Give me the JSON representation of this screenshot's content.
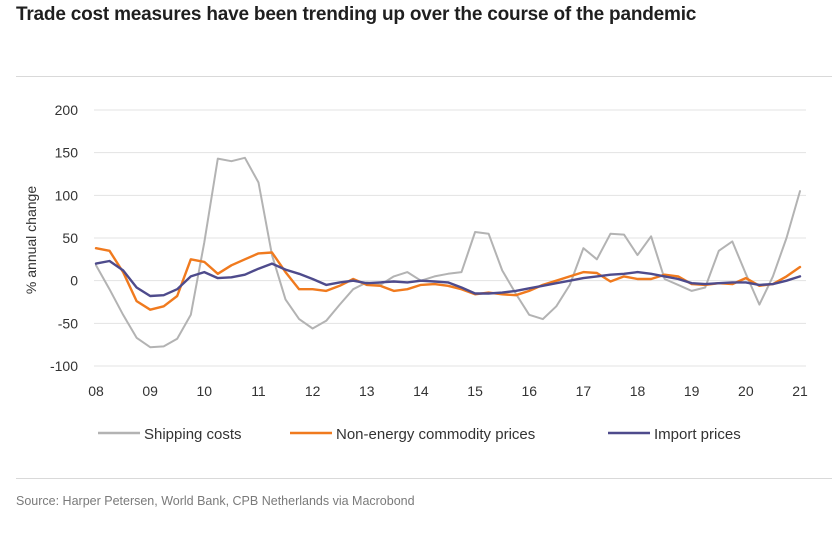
{
  "title": "Trade cost measures have been trending up over the course of the pandemic",
  "source": "Source: Harper Petersen, World Bank, CPB Netherlands via Macrobond",
  "colors": {
    "shipping": "#b3b3b3",
    "commodity": "#f07a1e",
    "import": "#4e4b8c",
    "grid": "#e3e3e3"
  },
  "chart_data": {
    "type": "line",
    "ylabel": "% annual change",
    "xlabel": "",
    "ylim": [
      -100,
      200
    ],
    "xlim": [
      2008,
      2021
    ],
    "yticks": [
      200,
      150,
      100,
      50,
      0,
      -50,
      -100
    ],
    "yticklabels": [
      "200",
      "150",
      "100",
      "50",
      "0",
      "-50",
      "-100"
    ],
    "xticks": [
      2008,
      2009,
      2010,
      2011,
      2012,
      2013,
      2014,
      2015,
      2016,
      2017,
      2018,
      2019,
      2020,
      2021
    ],
    "xticklabels": [
      "08",
      "09",
      "10",
      "11",
      "12",
      "13",
      "14",
      "15",
      "16",
      "17",
      "18",
      "19",
      "20",
      "21"
    ],
    "grid": true,
    "legend": "bottom",
    "series": [
      {
        "name": "Shipping costs",
        "key": "shipping",
        "x": [
          2008.0,
          2008.25,
          2008.5,
          2008.75,
          2009.0,
          2009.25,
          2009.5,
          2009.75,
          2010.0,
          2010.25,
          2010.5,
          2010.75,
          2011.0,
          2011.25,
          2011.5,
          2011.75,
          2012.0,
          2012.25,
          2012.5,
          2012.75,
          2013.0,
          2013.25,
          2013.5,
          2013.75,
          2014.0,
          2014.25,
          2014.5,
          2014.75,
          2015.0,
          2015.25,
          2015.5,
          2015.75,
          2016.0,
          2016.25,
          2016.5,
          2016.75,
          2017.0,
          2017.25,
          2017.5,
          2017.75,
          2018.0,
          2018.25,
          2018.5,
          2018.75,
          2019.0,
          2019.25,
          2019.5,
          2019.75,
          2020.0,
          2020.25,
          2020.5,
          2020.75,
          2021.0
        ],
        "values": [
          18,
          -10,
          -40,
          -67,
          -78,
          -77,
          -68,
          -40,
          45,
          143,
          140,
          144,
          115,
          30,
          -22,
          -45,
          -56,
          -47,
          -28,
          -10,
          -2,
          -5,
          5,
          10,
          0,
          5,
          8,
          10,
          57,
          55,
          12,
          -15,
          -40,
          -45,
          -30,
          -5,
          38,
          25,
          55,
          54,
          30,
          52,
          2,
          -5,
          -12,
          -8,
          35,
          46,
          8,
          -28,
          5,
          50,
          105
        ]
      },
      {
        "name": "Non-energy commodity prices",
        "key": "commodity",
        "x": [
          2008.0,
          2008.25,
          2008.5,
          2008.75,
          2009.0,
          2009.25,
          2009.5,
          2009.75,
          2010.0,
          2010.25,
          2010.5,
          2010.75,
          2011.0,
          2011.25,
          2011.5,
          2011.75,
          2012.0,
          2012.25,
          2012.5,
          2012.75,
          2013.0,
          2013.25,
          2013.5,
          2013.75,
          2014.0,
          2014.25,
          2014.5,
          2014.75,
          2015.0,
          2015.25,
          2015.5,
          2015.75,
          2016.0,
          2016.25,
          2016.5,
          2016.75,
          2017.0,
          2017.25,
          2017.5,
          2017.75,
          2018.0,
          2018.25,
          2018.5,
          2018.75,
          2019.0,
          2019.25,
          2019.5,
          2019.75,
          2020.0,
          2020.25,
          2020.5,
          2020.75,
          2021.0
        ],
        "values": [
          38,
          35,
          10,
          -24,
          -34,
          -30,
          -18,
          25,
          22,
          8,
          18,
          25,
          32,
          33,
          10,
          -10,
          -10,
          -12,
          -6,
          2,
          -5,
          -6,
          -12,
          -10,
          -5,
          -4,
          -6,
          -10,
          -16,
          -14,
          -16,
          -17,
          -12,
          -5,
          0,
          5,
          10,
          9,
          -1,
          5,
          2,
          2,
          7,
          5,
          -4,
          -5,
          -3,
          -4,
          3,
          -6,
          -4,
          5,
          16
        ]
      },
      {
        "name": "Import prices",
        "key": "import",
        "x": [
          2008.0,
          2008.25,
          2008.5,
          2008.75,
          2009.0,
          2009.25,
          2009.5,
          2009.75,
          2010.0,
          2010.25,
          2010.5,
          2010.75,
          2011.0,
          2011.25,
          2011.5,
          2011.75,
          2012.0,
          2012.25,
          2012.5,
          2012.75,
          2013.0,
          2013.25,
          2013.5,
          2013.75,
          2014.0,
          2014.25,
          2014.5,
          2014.75,
          2015.0,
          2015.25,
          2015.5,
          2015.75,
          2016.0,
          2016.25,
          2016.5,
          2016.75,
          2017.0,
          2017.25,
          2017.5,
          2017.75,
          2018.0,
          2018.25,
          2018.5,
          2018.75,
          2019.0,
          2019.25,
          2019.5,
          2019.75,
          2020.0,
          2020.25,
          2020.5,
          2020.75,
          2021.0
        ],
        "values": [
          20,
          23,
          12,
          -8,
          -18,
          -17,
          -10,
          5,
          10,
          3,
          4,
          7,
          14,
          20,
          13,
          8,
          2,
          -5,
          -2,
          0,
          -3,
          -2,
          -1,
          -2,
          0,
          -1,
          -2,
          -8,
          -15,
          -15,
          -14,
          -12,
          -9,
          -6,
          -3,
          0,
          3,
          5,
          7,
          8,
          10,
          8,
          5,
          2,
          -3,
          -4,
          -3,
          -2,
          -2,
          -5,
          -4,
          0,
          5
        ]
      }
    ]
  }
}
